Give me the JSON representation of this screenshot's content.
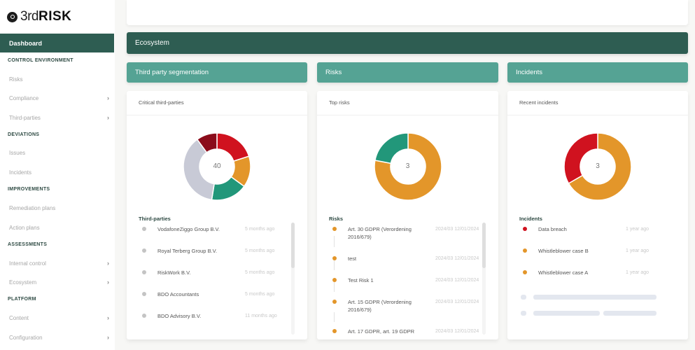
{
  "brand": {
    "prefix": "3rd",
    "name": "RISK",
    "logo_icon": "logo-circle-icon"
  },
  "colors": {
    "primary_dark": "#2e5d52",
    "primary_light": "#55a394",
    "red": "#d0121f",
    "dark_red": "#8b0c1b",
    "orange": "#e3962a",
    "green": "#22977a",
    "grey": "#c8cad6"
  },
  "sidebar": {
    "active": {
      "label": "Dashboard"
    },
    "sections": [
      {
        "title": "CONTROL ENVIRONMENT",
        "items": [
          {
            "label": "Risks",
            "has_children": false
          },
          {
            "label": "Compliance",
            "has_children": true
          },
          {
            "label": "Third-parties",
            "has_children": true
          }
        ]
      },
      {
        "title": "DEVIATIONS",
        "items": [
          {
            "label": "Issues",
            "has_children": false
          },
          {
            "label": "Incidents",
            "has_children": false
          }
        ]
      },
      {
        "title": "IMPROVEMENTS",
        "items": [
          {
            "label": "Remediation plans",
            "has_children": false
          },
          {
            "label": "Action plans",
            "has_children": false
          }
        ]
      },
      {
        "title": "ASSESSMENTS",
        "items": [
          {
            "label": "Internal control",
            "has_children": true
          },
          {
            "label": "Ecosystem",
            "has_children": true
          }
        ]
      },
      {
        "title": "PLATFORM",
        "items": [
          {
            "label": "Content",
            "has_children": true
          },
          {
            "label": "Configuration",
            "has_children": true
          }
        ]
      }
    ],
    "chevron_glyph": "›"
  },
  "main": {
    "ecosystem_title": "Ecosystem",
    "sections": [
      {
        "header": "Third party segmentation",
        "panel_title": "Critical third-parties",
        "total": "40",
        "list_title": "Third-parties",
        "items": [
          {
            "label": "VodafoneZiggo Group B.V.",
            "time": "5 months ago",
            "color": "#c4c4c4"
          },
          {
            "label": "Royal Terberg Group B.V.",
            "time": "5 months ago",
            "color": "#c4c4c4"
          },
          {
            "label": "RiskWork B.V.",
            "time": "5 months ago",
            "color": "#c4c4c4"
          },
          {
            "label": "BDO Accountants",
            "time": "5 months ago",
            "color": "#c4c4c4"
          },
          {
            "label": "BDO Advisory B.V.",
            "time": "11 months ago",
            "color": "#c4c4c4"
          }
        ]
      },
      {
        "header": "Risks",
        "panel_title": "Top risks",
        "total": "3",
        "list_title": "Risks",
        "items": [
          {
            "label": "Art. 30 GDPR (Verordening 2016/679)",
            "time": "2024/03 12/01/2024",
            "color": "#e3962a"
          },
          {
            "label": "test",
            "time": "2024/03 12/01/2024",
            "color": "#e3962a"
          },
          {
            "label": "Test Risk 1",
            "time": "2024/03 12/01/2024",
            "color": "#e3962a"
          },
          {
            "label": "Art. 15 GDPR (Verordening 2016/679)",
            "time": "2024/03 12/01/2024",
            "color": "#e3962a"
          },
          {
            "label": "Art. 17 GDPR, art. 19 GDPR",
            "time": "2024/03 12/01/2024",
            "color": "#e3962a"
          }
        ]
      },
      {
        "header": "Incidents",
        "panel_title": "Recent incidents",
        "total": "3",
        "list_title": "Incidents",
        "items": [
          {
            "label": "Data breach",
            "time": "1 year ago",
            "color": "#d0121f"
          },
          {
            "label": "Whistleblower case B",
            "time": "1 year ago",
            "color": "#e3962a"
          },
          {
            "label": "Whistleblower case A",
            "time": "1 year ago",
            "color": "#e3962a"
          }
        ]
      }
    ]
  },
  "chart_data": [
    {
      "type": "pie",
      "title": "Critical third-parties",
      "center_label": "40",
      "categories": [
        "Red",
        "Orange",
        "Green",
        "Grey",
        "Dark red"
      ],
      "values": [
        8,
        6,
        7,
        15,
        4
      ],
      "colors": [
        "#d0121f",
        "#e3962a",
        "#22977a",
        "#c8cad6",
        "#8b0c1b"
      ]
    },
    {
      "type": "pie",
      "title": "Top risks",
      "center_label": "3",
      "categories": [
        "Orange",
        "Green"
      ],
      "values": [
        78,
        22
      ],
      "colors": [
        "#e3962a",
        "#22977a"
      ]
    },
    {
      "type": "pie",
      "title": "Recent incidents",
      "center_label": "3",
      "categories": [
        "Orange",
        "Red"
      ],
      "values": [
        2,
        1
      ],
      "colors": [
        "#e3962a",
        "#d0121f"
      ]
    }
  ]
}
